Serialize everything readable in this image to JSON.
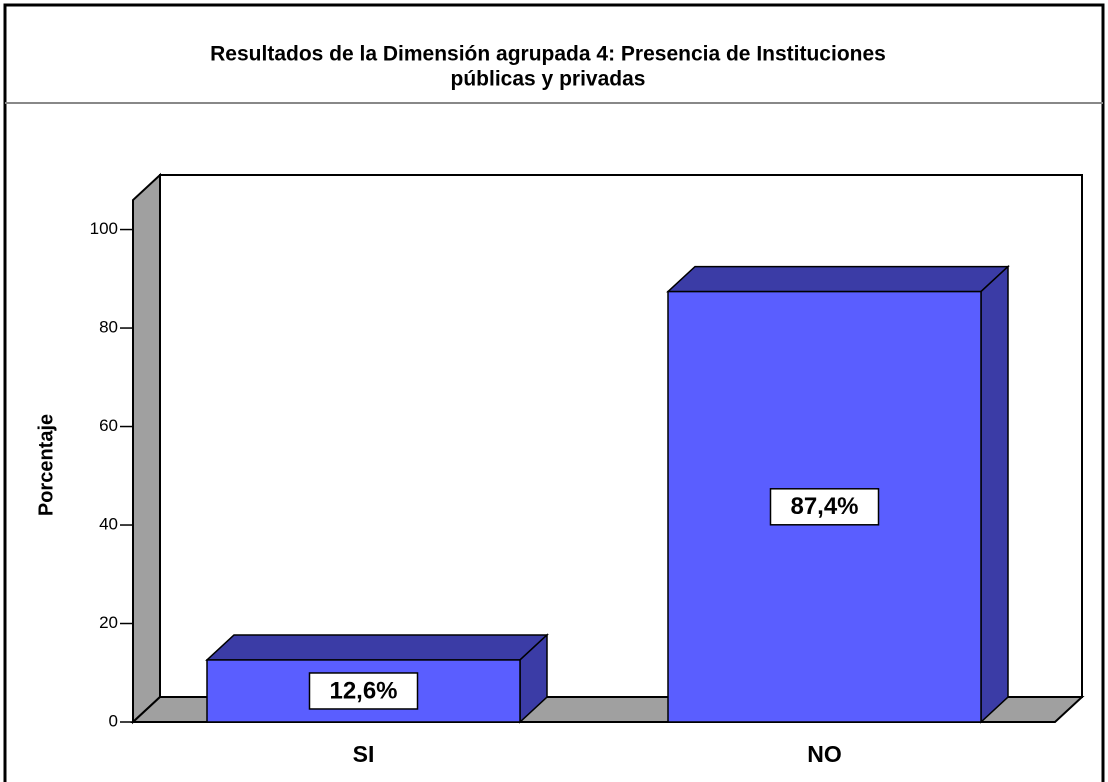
{
  "chart_data": {
    "type": "bar3d",
    "title_lines": [
      "Resultados de la Dimensión agrupada 4: Presencia de Instituciones",
      "públicas y privadas"
    ],
    "ylabel": "Porcentaje",
    "categories": [
      "SI",
      "NO"
    ],
    "values": [
      12.6,
      87.4
    ],
    "value_labels": [
      "12,6%",
      "87,4%"
    ],
    "color": "#5a5eff",
    "ylim": [
      0,
      106
    ],
    "yticks": [
      0,
      20,
      40,
      60,
      80,
      100
    ]
  }
}
